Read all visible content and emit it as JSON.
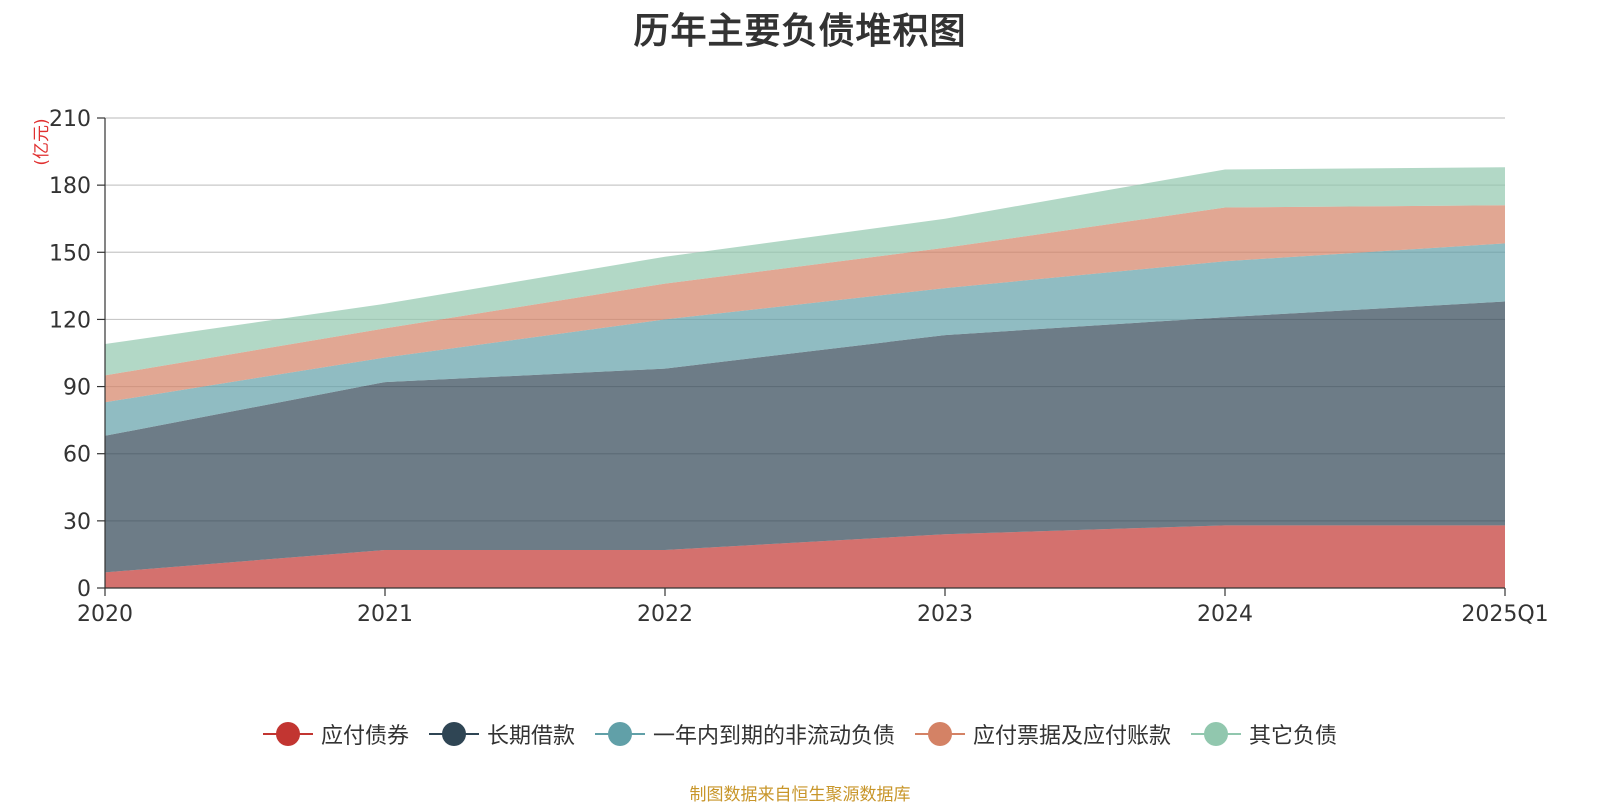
{
  "chart_data": {
    "type": "area",
    "stacked": true,
    "title": "历年主要负债堆积图",
    "unit_label": "(亿元)",
    "categories": [
      "2020",
      "2021",
      "2022",
      "2023",
      "2024",
      "2025Q1"
    ],
    "ylim": [
      0,
      210
    ],
    "yticks": [
      0,
      30,
      60,
      90,
      120,
      150,
      180,
      210
    ],
    "grid": true,
    "legend_position": "bottom",
    "series": [
      {
        "name": "应付债券",
        "color": "#c23531",
        "values": [
          7,
          17,
          17,
          24,
          28,
          28
        ]
      },
      {
        "name": "长期借款",
        "color": "#2f4554",
        "values": [
          61,
          75,
          81,
          89,
          93,
          100
        ]
      },
      {
        "name": "一年内到期的非流动负债",
        "color": "#61a0a8",
        "values": [
          15,
          11,
          22,
          21,
          25,
          26
        ]
      },
      {
        "name": "应付票据及应付账款",
        "color": "#d48265",
        "values": [
          12,
          13,
          16,
          18,
          24,
          17
        ]
      },
      {
        "name": "其它负债",
        "color": "#91c7ae",
        "values": [
          14,
          11,
          12,
          13,
          17,
          17
        ]
      }
    ]
  },
  "source_note": "制图数据来自恒生聚源数据库"
}
